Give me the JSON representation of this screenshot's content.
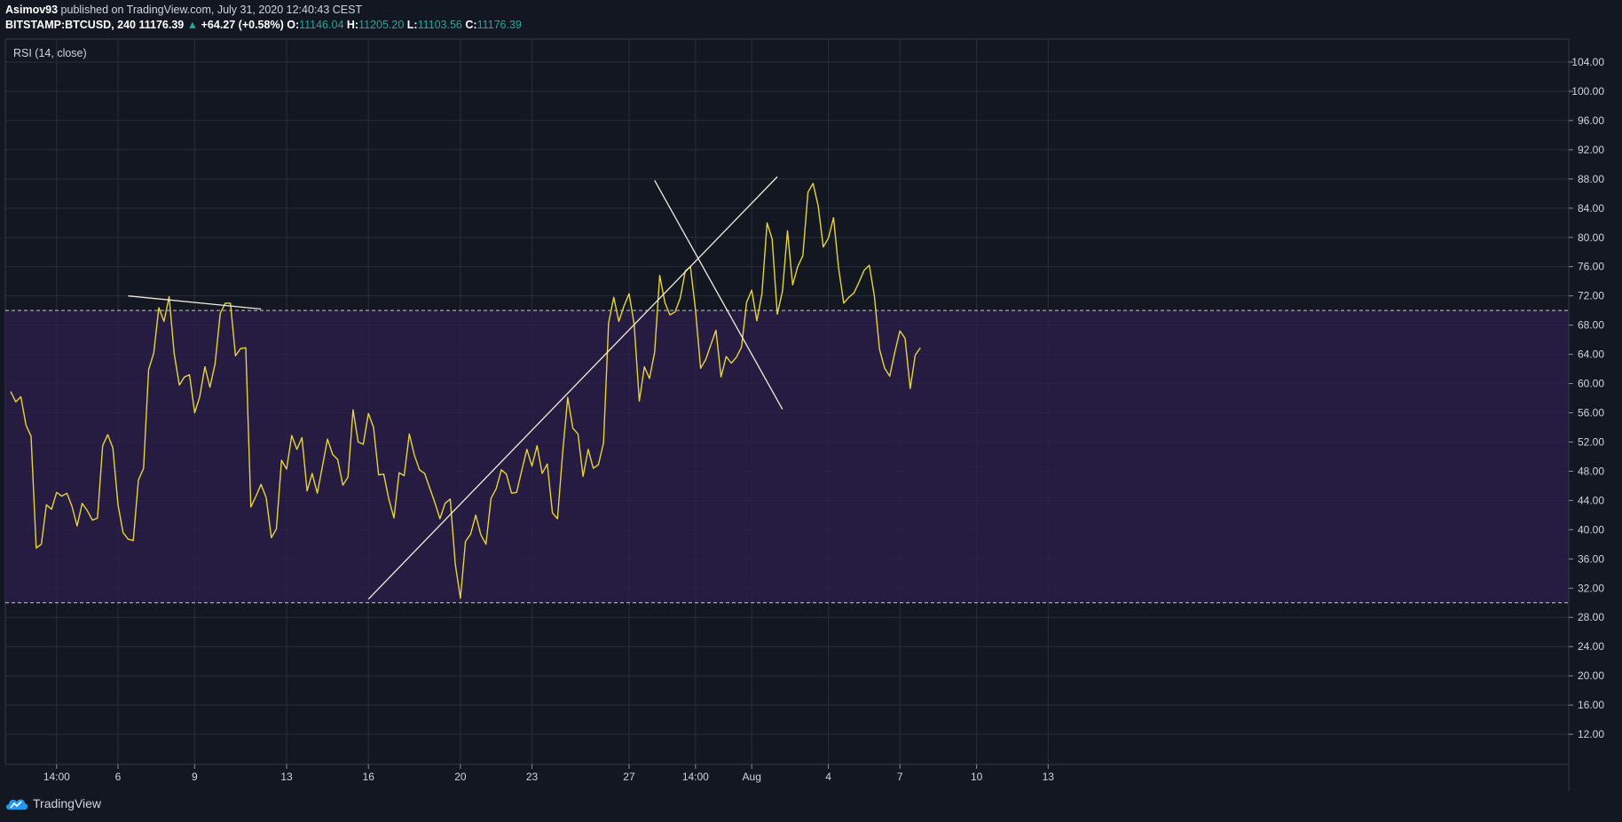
{
  "header": {
    "author": "Asimov93",
    "published_text": "published on TradingView.com, July 31, 2020 12:40:43 CEST",
    "symbol": "BITSTAMP:BTCUSD, 240",
    "last_price": "11176.39",
    "change_arrow": "▲",
    "change": "+64.27 (+0.58%)",
    "open_label": "O:",
    "open": "11146.04",
    "high_label": "H:",
    "high": "11205.20",
    "low_label": "L:",
    "low": "11103.56",
    "close_label": "C:",
    "close": "11176.39"
  },
  "footer": {
    "brand": "TradingView",
    "logo_icon": "tradingview-cloud-icon"
  },
  "colors": {
    "background": "#131722",
    "grid": "#2a2e39",
    "rsi_line": "#e6d33c",
    "band_fill": "#2a1d47",
    "band_lines": "#c8c8c8",
    "trendlines": "#f0eedc",
    "up": "#26a69a"
  },
  "chart_data": {
    "type": "line",
    "title": "RSI (14, close)",
    "ylim": [
      8,
      106
    ],
    "y_ticks": [
      12,
      16,
      20,
      24,
      28,
      32,
      36,
      40,
      44,
      48,
      52,
      56,
      60,
      64,
      68,
      72,
      76,
      80,
      84,
      88,
      92,
      96,
      100,
      104
    ],
    "y_tick_labels": [
      "12.00",
      "16.00",
      "20.00",
      "24.00",
      "28.00",
      "32.00",
      "36.00",
      "40.00",
      "44.00",
      "48.00",
      "52.00",
      "56.00",
      "60.00",
      "64.00",
      "68.00",
      "72.00",
      "76.00",
      "80.00",
      "84.00",
      "88.00",
      "92.00",
      "96.00",
      "100.00",
      "104.00"
    ],
    "xlim": [
      0,
      213
    ],
    "x_ticks": [
      {
        "bar": 9,
        "label": "14:00"
      },
      {
        "bar": 21,
        "label": "6"
      },
      {
        "bar": 36,
        "label": "9"
      },
      {
        "bar": 54,
        "label": "13"
      },
      {
        "bar": 70,
        "label": "16"
      },
      {
        "bar": 88,
        "label": "20"
      },
      {
        "bar": 102,
        "label": "23"
      },
      {
        "bar": 121,
        "label": "27"
      },
      {
        "bar": 134,
        "label": "14:00"
      },
      {
        "bar": 145,
        "label": "Aug"
      },
      {
        "bar": 160,
        "label": "4"
      },
      {
        "bar": 174,
        "label": "7"
      },
      {
        "bar": 189,
        "label": "10"
      },
      {
        "bar": 203,
        "label": "13"
      }
    ],
    "bands": {
      "upper": 70,
      "lower": 30
    },
    "grid": true,
    "series": [
      {
        "values": [
          58.9,
          57.5,
          58.2,
          54.3,
          52.8,
          37.5,
          38.0,
          43.4,
          42.8,
          45.1,
          44.6,
          45.0,
          43.2,
          40.5,
          43.6,
          42.6,
          41.3,
          41.6,
          51.5,
          53.0,
          51.2,
          43.4,
          39.6,
          38.7,
          38.5,
          46.8,
          48.4,
          61.9,
          64.2,
          70.4,
          68.5,
          71.9,
          64.1,
          59.8,
          60.9,
          61.2,
          56.0,
          58.2,
          62.3,
          59.5,
          62.7,
          69.6,
          71.0,
          71.0,
          63.8,
          64.8,
          64.9,
          43.1,
          44.6,
          46.2,
          44.4,
          38.9,
          40.1,
          49.5,
          48.3,
          52.9,
          51.0,
          52.6,
          45.3,
          47.7,
          45.0,
          48.7,
          52.4,
          50.3,
          49.6,
          46.1,
          47.2,
          56.4,
          52.0,
          51.7,
          55.9,
          54.0,
          47.5,
          47.6,
          44.2,
          41.6,
          47.8,
          47.4,
          53.1,
          50.2,
          48.2,
          47.7,
          45.7,
          43.7,
          41.5,
          43.6,
          44.2,
          35.3,
          30.6,
          38.4,
          39.4,
          42.0,
          39.3,
          38.0,
          44.3,
          45.6,
          48.2,
          47.6,
          45.0,
          45.1,
          48.1,
          51.0,
          48.7,
          51.5,
          47.7,
          49.0,
          42.3,
          41.5,
          50.5,
          58.1,
          53.9,
          53.1,
          47.3,
          51.0,
          48.4,
          48.9,
          51.9,
          68.3,
          71.8,
          68.5,
          70.6,
          72.3,
          68.1,
          57.6,
          62.3,
          60.7,
          64.3,
          74.8,
          71.1,
          69.4,
          69.8,
          71.7,
          75.4,
          76.0,
          70.1,
          62.1,
          63.3,
          65.3,
          67.3,
          60.9,
          63.7,
          62.8,
          63.6,
          65.0,
          71.1,
          72.8,
          68.6,
          72.3,
          82.0,
          79.8,
          69.5,
          72.6,
          80.9,
          73.5,
          76.0,
          77.5,
          86.2,
          87.4,
          84.3,
          78.7,
          79.9,
          82.7,
          75.8,
          71.0,
          71.8,
          72.4,
          73.9,
          75.5,
          76.2,
          72.0,
          64.7,
          62.1,
          61.0,
          64.3,
          67.2,
          66.2,
          59.3,
          63.9,
          64.9
        ]
      }
    ],
    "annotations": [
      {
        "type": "trendline",
        "from": [
          23,
          72.0
        ],
        "to": [
          49,
          70.2
        ]
      },
      {
        "type": "trendline",
        "from": [
          70,
          30.5
        ],
        "to": [
          150,
          88.3
        ]
      },
      {
        "type": "trendline",
        "from": [
          126,
          87.8
        ],
        "to": [
          151,
          56.5
        ]
      }
    ]
  }
}
